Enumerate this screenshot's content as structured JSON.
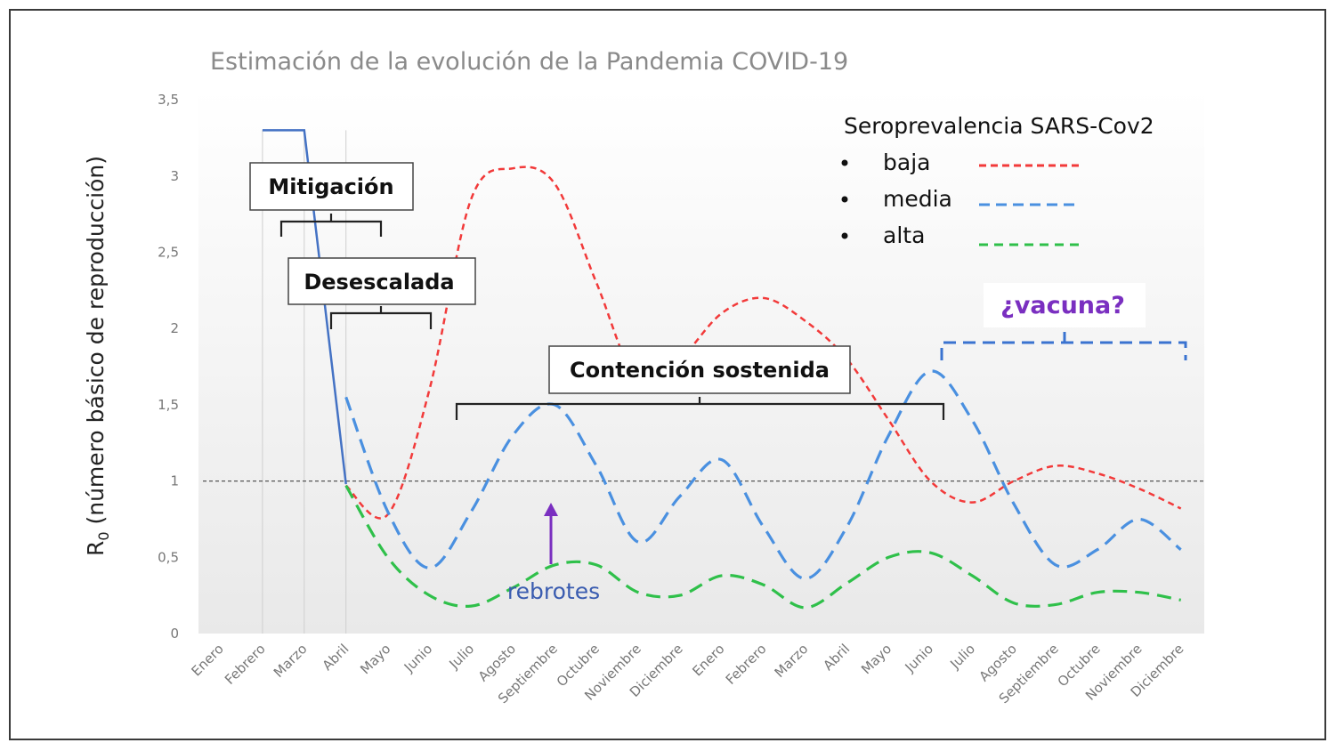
{
  "chart_data": {
    "type": "line",
    "title": "Estimación de la evolución de la Pandemia COVID-19",
    "ylabel": "R0 (número básico de reproducción)",
    "ylabel_main": "R",
    "ylabel_sub": "0",
    "ylabel_rest": " (número básico de reproducción)",
    "xlabel": "",
    "ylim": [
      0,
      3.5
    ],
    "yticks": [
      0,
      0.5,
      1,
      1.5,
      2,
      2.5,
      3,
      3.5
    ],
    "ytick_labels": [
      "0",
      "0,5",
      "1",
      "1,5",
      "2",
      "2,5",
      "3",
      "3,5"
    ],
    "categories": [
      "Enero",
      "Febrero",
      "Marzo",
      "Abril",
      "Mayo",
      "Junio",
      "Julio",
      "Agosto",
      "Septiembre",
      "Octubre",
      "Noviembre",
      "Diciembre",
      "Enero",
      "Febrero",
      "Marzo",
      "Abril",
      "Mayo",
      "Junio",
      "Julio",
      "Agosto",
      "Septiembre",
      "Octubre",
      "Noviembre",
      "Diciembre"
    ],
    "reference_line": 1,
    "grid": false,
    "series": [
      {
        "name": "",
        "color": "#4472c4",
        "style": "solid",
        "points": [
          [
            1,
            3.3
          ],
          [
            2,
            3.3
          ],
          [
            3,
            0.98
          ]
        ]
      },
      {
        "name": "baja",
        "color": "#f23a3a",
        "style": "dashed-fine",
        "points": [
          [
            3,
            0.97
          ],
          [
            4,
            0.78
          ],
          [
            5,
            1.6
          ],
          [
            6,
            2.85
          ],
          [
            7,
            3.05
          ],
          [
            8,
            2.95
          ],
          [
            9,
            2.3
          ],
          [
            10,
            1.65
          ],
          [
            11,
            1.8
          ],
          [
            12,
            2.1
          ],
          [
            13,
            2.2
          ],
          [
            14,
            2.05
          ],
          [
            15,
            1.8
          ],
          [
            16,
            1.4
          ],
          [
            17,
            1.0
          ],
          [
            18,
            0.86
          ],
          [
            19,
            1.0
          ],
          [
            20,
            1.1
          ],
          [
            21,
            1.05
          ],
          [
            22,
            0.95
          ],
          [
            23,
            0.82
          ]
        ]
      },
      {
        "name": "media",
        "color": "#4a90e0",
        "style": "dashed",
        "points": [
          [
            3,
            1.55
          ],
          [
            4,
            0.8
          ],
          [
            5,
            0.43
          ],
          [
            6,
            0.8
          ],
          [
            7,
            1.3
          ],
          [
            8,
            1.5
          ],
          [
            9,
            1.1
          ],
          [
            10,
            0.6
          ],
          [
            11,
            0.9
          ],
          [
            12,
            1.14
          ],
          [
            13,
            0.7
          ],
          [
            14,
            0.36
          ],
          [
            15,
            0.7
          ],
          [
            16,
            1.3
          ],
          [
            17,
            1.72
          ],
          [
            18,
            1.4
          ],
          [
            19,
            0.85
          ],
          [
            20,
            0.45
          ],
          [
            21,
            0.55
          ],
          [
            22,
            0.75
          ],
          [
            23,
            0.55
          ]
        ]
      },
      {
        "name": "alta",
        "color": "#2fc04a",
        "style": "dashed",
        "points": [
          [
            3,
            0.97
          ],
          [
            4,
            0.5
          ],
          [
            5,
            0.25
          ],
          [
            6,
            0.18
          ],
          [
            7,
            0.3
          ],
          [
            8,
            0.45
          ],
          [
            9,
            0.45
          ],
          [
            10,
            0.27
          ],
          [
            11,
            0.25
          ],
          [
            12,
            0.38
          ],
          [
            13,
            0.32
          ],
          [
            14,
            0.17
          ],
          [
            15,
            0.33
          ],
          [
            16,
            0.5
          ],
          [
            17,
            0.53
          ],
          [
            18,
            0.38
          ],
          [
            19,
            0.2
          ],
          [
            20,
            0.19
          ],
          [
            21,
            0.27
          ],
          [
            22,
            0.27
          ],
          [
            23,
            0.22
          ]
        ]
      }
    ],
    "legend": {
      "title": "Seroprevalencia SARS-Cov2",
      "position": "top-right",
      "items": [
        {
          "label": "baja",
          "color": "#f23a3a"
        },
        {
          "label": "media",
          "color": "#4a90e0"
        },
        {
          "label": "alta",
          "color": "#2fc04a"
        }
      ]
    },
    "annotations": {
      "mitigacion": "Mitigación",
      "desescalada": "Desescalada",
      "contencion": "Contención sostenida",
      "vacuna": "¿vacuna?",
      "rebrotes": "rebrotes"
    }
  },
  "colors": {
    "plot_bg_top": "#ffffff",
    "plot_bg_bottom": "#e9e9e9",
    "arrow": "#7a2fc0",
    "vacuna_bracket": "#3a73d0"
  }
}
